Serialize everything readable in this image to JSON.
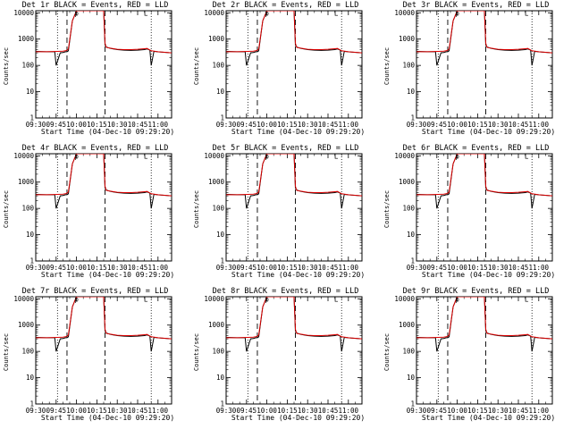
{
  "chart_data": [
    {
      "type": "line",
      "title": "Det 1r BLACK = Events, RED = LLD"
    },
    {
      "type": "line",
      "title": "Det 2r BLACK = Events, RED = LLD"
    },
    {
      "type": "line",
      "title": "Det 3r BLACK = Events, RED = LLD"
    },
    {
      "type": "line",
      "title": "Det 4r BLACK = Events, RED = LLD"
    },
    {
      "type": "line",
      "title": "Det 5r BLACK = Events, RED = LLD"
    },
    {
      "type": "line",
      "title": "Det 6r BLACK = Events, RED = LLD"
    },
    {
      "type": "line",
      "title": "Det 7r BLACK = Events, RED = LLD"
    },
    {
      "type": "line",
      "title": "Det 8r BLACK = Events, RED = LLD"
    },
    {
      "type": "line",
      "title": "Det 9r BLACK = Events, RED = LLD"
    }
  ],
  "shared": {
    "xlabel": "Start Time (04-Dec-10 09:29:20)",
    "ylabel": "Counts/sec",
    "x_ticks": [
      "09:30",
      "09:45",
      "10:00",
      "10:15",
      "10:30",
      "10:45",
      "11:00"
    ],
    "x_range_min": [
      0,
      100
    ],
    "y_ticks": [
      "1",
      "10",
      "100",
      "1000",
      "10000"
    ],
    "y_range": [
      1,
      12000
    ],
    "y_scale": "log",
    "dotted_lines_min": [
      16,
      85
    ],
    "dashed_lines_min": [
      23,
      51
    ],
    "markers": [
      {
        "x_min": 30,
        "y": 10000,
        "symbol": "p"
      },
      {
        "x_min": 81,
        "y": 10000,
        "symbol": "L"
      }
    ],
    "series": [
      {
        "name": "Events",
        "color": "#000000",
        "x": [
          0,
          8,
          14,
          15,
          18,
          20,
          22,
          23,
          24,
          27,
          30,
          35,
          40,
          45,
          50,
          51,
          52,
          55,
          60,
          65,
          70,
          75,
          80,
          82,
          84,
          85,
          87,
          92,
          100
        ],
        "y": [
          340,
          330,
          330,
          100,
          300,
          310,
          330,
          330,
          360,
          5000,
          12000,
          12000,
          12000,
          12000,
          12000,
          600,
          500,
          440,
          400,
          380,
          370,
          380,
          400,
          420,
          380,
          100,
          340,
          320,
          300
        ]
      },
      {
        "name": "LLD",
        "color": "#dd0000",
        "x": [
          0,
          8,
          16,
          20,
          22,
          23,
          24,
          27,
          30,
          35,
          40,
          45,
          50,
          51,
          52,
          55,
          60,
          65,
          70,
          75,
          80,
          82,
          85,
          90,
          100
        ],
        "y": [
          330,
          330,
          340,
          350,
          360,
          380,
          420,
          5000,
          12000,
          12000,
          12000,
          12000,
          12000,
          700,
          480,
          450,
          410,
          400,
          400,
          410,
          430,
          440,
          360,
          330,
          300
        ]
      }
    ]
  }
}
